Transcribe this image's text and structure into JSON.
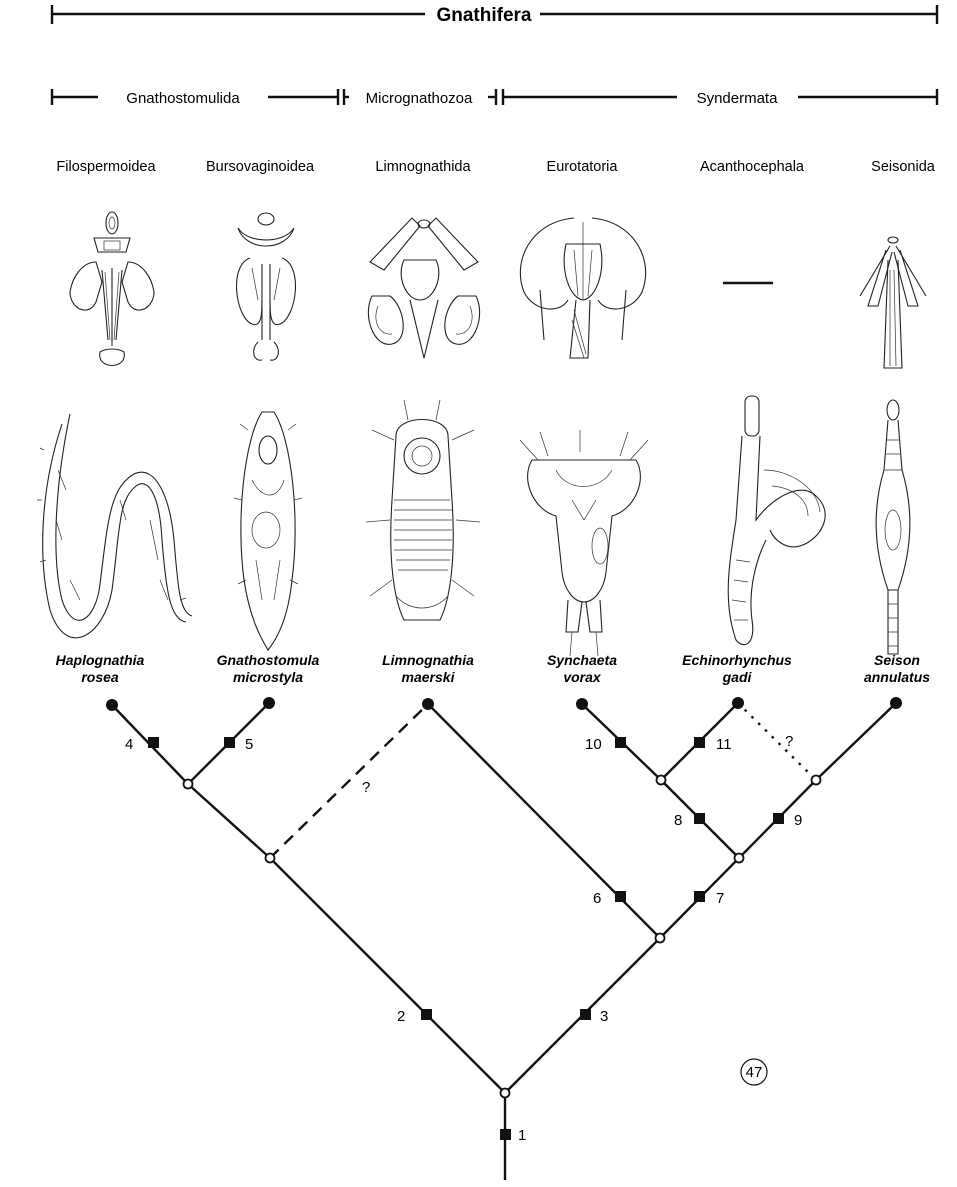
{
  "header": {
    "clade": "Gnathifera",
    "groups": [
      "Gnathostomulida",
      "Micrognathozoa",
      "Syndermata"
    ]
  },
  "subgroups": [
    "Filospermoidea",
    "Bursovaginoidea",
    "Limnognathida",
    "Eurotatoria",
    "Acanthocephala",
    "Seisonida"
  ],
  "species": [
    {
      "genus": "Haplognathia",
      "epithet": "rosea"
    },
    {
      "genus": "Gnathostomula",
      "epithet": "microstyla"
    },
    {
      "genus": "Limnognathia",
      "epithet": "maerski"
    },
    {
      "genus": "Synchaeta",
      "epithet": "vorax"
    },
    {
      "genus": "Echinorhynchus",
      "epithet": "gadi"
    },
    {
      "genus": "Seison",
      "epithet": "annulatus"
    }
  ],
  "characters": [
    "1",
    "2",
    "3",
    "4",
    "5",
    "6",
    "7",
    "8",
    "9",
    "10",
    "11"
  ],
  "uncertain_marks": [
    "?",
    "?"
  ],
  "figure_number": "47"
}
